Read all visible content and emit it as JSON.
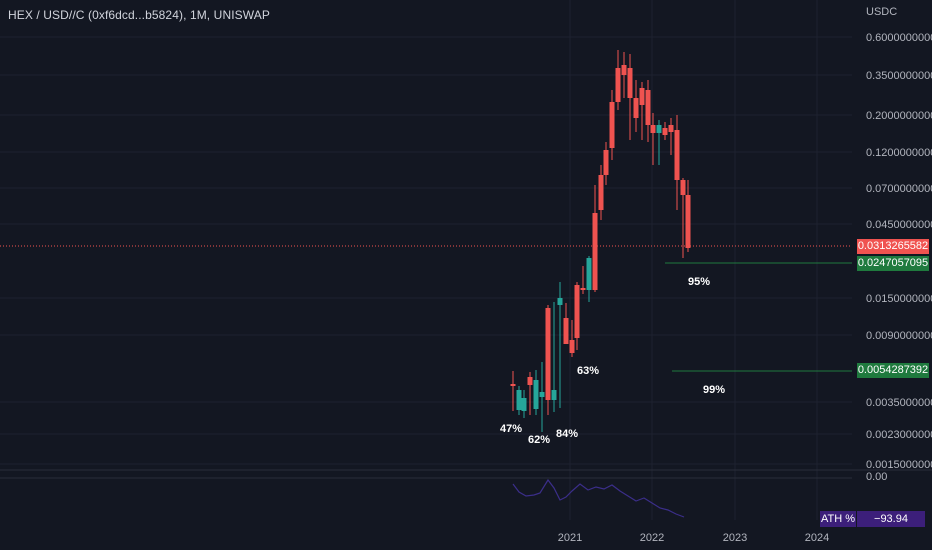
{
  "header": {
    "title": "HEX / USD//C (0xf6dcd...b5824), 1M, UNISWAP",
    "axis_unit": "USDC"
  },
  "price_axis": {
    "labels": [
      "0.6000000000",
      "0.3500000000",
      "0.2000000000",
      "0.1200000000",
      "0.0700000000",
      "0.0450000000",
      "0.0150000000",
      "0.0090000000",
      "0.0035000000",
      "0.0023000000",
      "0.0015000000"
    ]
  },
  "badges": {
    "last_price": {
      "value": "0.0313265582",
      "color": "#f05350"
    },
    "level_1": {
      "value": "0.0247057095",
      "color": "#1f7a3e"
    },
    "level_2": {
      "value": "0.0054287392",
      "color": "#1f7a3e"
    }
  },
  "annotations": [
    "47%",
    "62%",
    "84%",
    "63%",
    "95%",
    "99%"
  ],
  "time_axis": {
    "labels": [
      "2021",
      "2022",
      "2023",
      "2024"
    ]
  },
  "indicator": {
    "zero_label": "0.00",
    "ath_label": "ATH %",
    "ath_value": "−93.94",
    "ath_color": "#3c1f7a"
  },
  "colors": {
    "up": "#26a69a",
    "down": "#ef5350",
    "background": "#131722"
  }
}
